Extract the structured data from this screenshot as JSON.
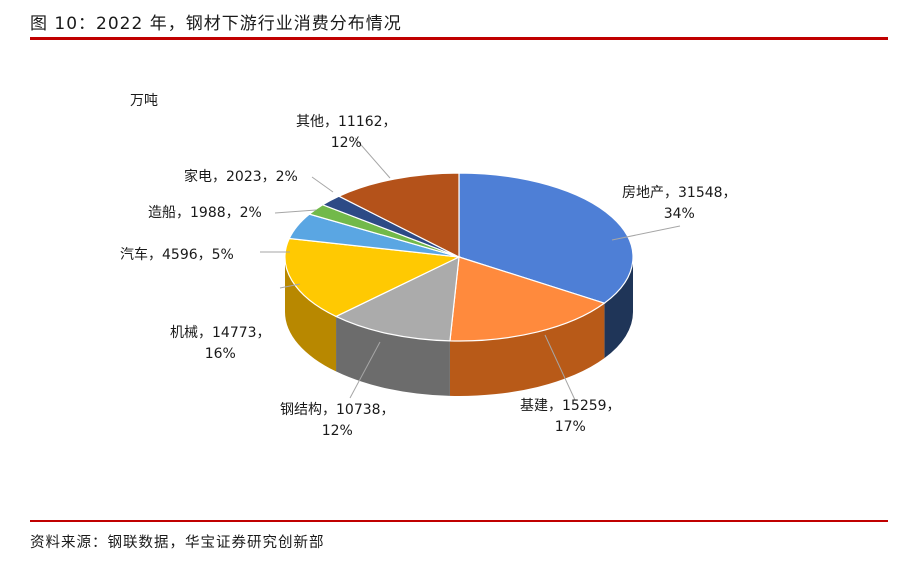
{
  "title": "图 10：2022 年，钢材下游行业消费分布情况",
  "unit_label": "万吨",
  "source": "资料来源：钢联数据，华宝证券研究创新部",
  "chart_data": {
    "type": "pie",
    "title": "",
    "unit": "万吨",
    "slices": [
      {
        "name": "房地产",
        "value": 31548,
        "percent": "34%",
        "color": "#4e7fd6",
        "side": "#1f3558"
      },
      {
        "name": "基建",
        "value": 15259,
        "percent": "17%",
        "color": "#ff8a3d",
        "side": "#b85a18"
      },
      {
        "name": "钢结构",
        "value": 10738,
        "percent": "12%",
        "color": "#ababab",
        "side": "#6c6c6c"
      },
      {
        "name": "机械",
        "value": 14773,
        "percent": "16%",
        "color": "#ffc902",
        "side": "#b88800"
      },
      {
        "name": "汽车",
        "value": 4596,
        "percent": "5%",
        "color": "#5aa6e3",
        "side": "#2a6aa6"
      },
      {
        "name": "造船",
        "value": 1988,
        "percent": "2%",
        "color": "#72b94a",
        "side": "#43782b"
      },
      {
        "name": "家电",
        "value": 2023,
        "percent": "2%",
        "color": "#2d4a86",
        "side": "#162649"
      },
      {
        "name": "其他",
        "value": 11162,
        "percent": "12%",
        "color": "#b4521a",
        "side": "#6e2f0b"
      }
    ]
  }
}
